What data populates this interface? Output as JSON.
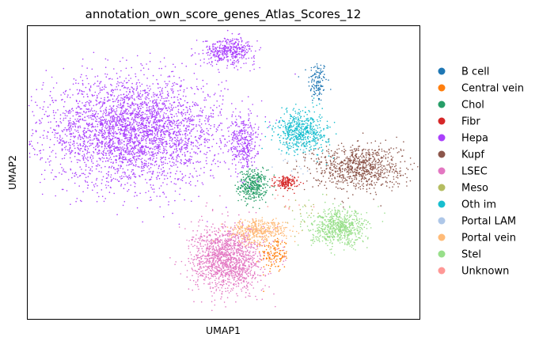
{
  "chart_data": {
    "type": "scatter",
    "title": "annotation_own_score_genes_Atlas_Scores_12",
    "xlabel": "UMAP1",
    "ylabel": "UMAP2",
    "grid": false,
    "show_ticks": false,
    "legend_placement": "right",
    "xlim": [
      0,
      100
    ],
    "ylim": [
      0,
      100
    ],
    "series": [
      {
        "name": "B cell",
        "color": "#1f77b4",
        "n": 120,
        "clusters": [
          {
            "cx": 74.0,
            "cy": 81.0,
            "rx": 2.0,
            "ry": 6.0,
            "n": 120
          }
        ]
      },
      {
        "name": "Central vein",
        "color": "#ff7f0e",
        "n": 130,
        "clusters": [
          {
            "cx": 63.0,
            "cy": 22.0,
            "rx": 3.0,
            "ry": 5.0,
            "n": 130
          }
        ]
      },
      {
        "name": "Chol",
        "color": "#279e68",
        "n": 350,
        "clusters": [
          {
            "cx": 57.5,
            "cy": 45.5,
            "rx": 3.0,
            "ry": 4.5,
            "n": 350
          }
        ]
      },
      {
        "name": "Fibr",
        "color": "#d62728",
        "n": 150,
        "clusters": [
          {
            "cx": 66.0,
            "cy": 46.5,
            "rx": 2.5,
            "ry": 2.0,
            "n": 150
          }
        ]
      },
      {
        "name": "Hepa",
        "color": "#aa40fc",
        "n": 4000,
        "clusters": [
          {
            "cx": 27.0,
            "cy": 64.0,
            "rx": 19.0,
            "ry": 15.0,
            "n": 3300
          },
          {
            "cx": 51.5,
            "cy": 91.5,
            "rx": 5.5,
            "ry": 3.8,
            "n": 400
          },
          {
            "cx": 55.0,
            "cy": 60.0,
            "rx": 3.0,
            "ry": 8.0,
            "n": 300
          }
        ]
      },
      {
        "name": "Kupf",
        "color": "#8c564b",
        "n": 850,
        "clusters": [
          {
            "cx": 84.5,
            "cy": 52.0,
            "rx": 9.5,
            "ry": 6.5,
            "n": 850
          }
        ]
      },
      {
        "name": "LSEC",
        "color": "#e377c2",
        "n": 1400,
        "clusters": [
          {
            "cx": 51.0,
            "cy": 20.5,
            "rx": 7.5,
            "ry": 9.5,
            "n": 1400
          }
        ]
      },
      {
        "name": "Meso",
        "color": "#b5bd61",
        "n": 20,
        "clusters": [
          {
            "cx": 71.0,
            "cy": 38.0,
            "rx": 5.0,
            "ry": 5.0,
            "n": 20
          }
        ]
      },
      {
        "name": "Oth im",
        "color": "#17becf",
        "n": 550,
        "clusters": [
          {
            "cx": 70.0,
            "cy": 64.0,
            "rx": 5.5,
            "ry": 6.0,
            "n": 550
          }
        ]
      },
      {
        "name": "Portal LAM",
        "color": "#aec7e8",
        "n": 15,
        "clusters": [
          {
            "cx": 68.0,
            "cy": 52.0,
            "rx": 5.0,
            "ry": 5.0,
            "n": 15
          }
        ]
      },
      {
        "name": "Portal vein",
        "color": "#ffbb78",
        "n": 400,
        "clusters": [
          {
            "cx": 59.0,
            "cy": 30.0,
            "rx": 6.0,
            "ry": 3.5,
            "n": 400
          }
        ]
      },
      {
        "name": "Stel",
        "color": "#98df8a",
        "n": 650,
        "clusters": [
          {
            "cx": 79.5,
            "cy": 31.0,
            "rx": 6.0,
            "ry": 5.0,
            "n": 650
          }
        ]
      },
      {
        "name": "Unknown",
        "color": "#ff9896",
        "n": 10,
        "clusters": [
          {
            "cx": 64.0,
            "cy": 40.0,
            "rx": 8.0,
            "ry": 6.0,
            "n": 10
          }
        ]
      }
    ]
  }
}
